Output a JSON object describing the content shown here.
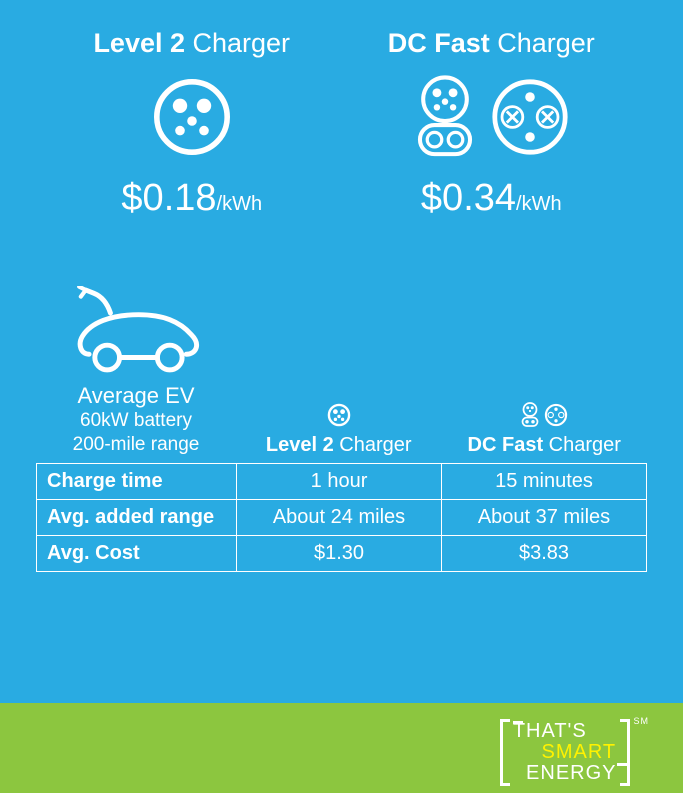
{
  "colors": {
    "main_bg": "#29abe2",
    "footer_bg": "#8cc63f",
    "text": "#ffffff",
    "accent": "#fff200"
  },
  "chargers": {
    "level2": {
      "title_bold": "Level 2",
      "title_rest": " Charger",
      "price": "$0.18",
      "unit": "/kWh"
    },
    "dcfast": {
      "title_bold": "DC Fast",
      "title_rest": " Charger",
      "price": "$0.34",
      "unit": "/kWh"
    }
  },
  "ev": {
    "label": "Average EV",
    "sub1": "60kW battery",
    "sub2": "200-mile range"
  },
  "table": {
    "col_headers": {
      "level2_bold": "Level 2",
      "level2_rest": " Charger",
      "dcfast_bold": "DC Fast",
      "dcfast_rest": " Charger"
    },
    "rows": [
      {
        "label": "Charge time",
        "level2": "1 hour",
        "dcfast": "15 minutes"
      },
      {
        "label": "Avg. added range",
        "level2": "About 24 miles",
        "dcfast": "About 37 miles"
      },
      {
        "label": "Avg. Cost",
        "level2": "$1.30",
        "dcfast": "$3.83"
      }
    ]
  },
  "footer": {
    "line1": "THAT'S",
    "line2": "SMART",
    "line3": "ENERGY",
    "mark": "SM"
  }
}
